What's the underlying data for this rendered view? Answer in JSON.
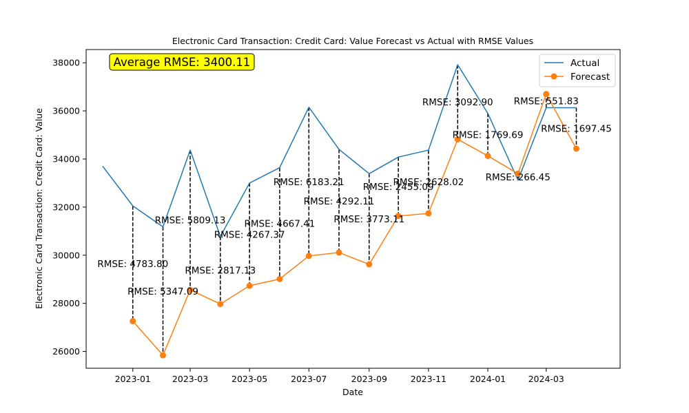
{
  "chart_data": {
    "type": "line",
    "title": "Electronic Card Transaction: Credit Card: Value Forecast vs Actual with RMSE Values",
    "xlabel": "Date",
    "ylabel": "Electronic Card Transaction: Credit Card: Value",
    "ylim": [
      25300,
      38550
    ],
    "xlim": [
      "2022-11-14",
      "2024-05-16"
    ],
    "x_ticks": [
      {
        "date": "2023-01-01",
        "label": "2023-01"
      },
      {
        "date": "2023-03-01",
        "label": "2023-03"
      },
      {
        "date": "2023-05-01",
        "label": "2023-05"
      },
      {
        "date": "2023-07-01",
        "label": "2023-07"
      },
      {
        "date": "2023-09-01",
        "label": "2023-09"
      },
      {
        "date": "2023-11-01",
        "label": "2023-11"
      },
      {
        "date": "2024-01-01",
        "label": "2024-01"
      },
      {
        "date": "2024-03-01",
        "label": "2024-03"
      }
    ],
    "y_ticks": [
      26000,
      28000,
      30000,
      32000,
      34000,
      36000,
      38000
    ],
    "grid": false,
    "legend_position": "top-right",
    "annotation": "Average RMSE: 3400.11",
    "series": [
      {
        "name": "Actual",
        "color": "#1f77b4",
        "marker": "none",
        "points": [
          {
            "date": "2022-12-01",
            "value": 33700
          },
          {
            "date": "2023-01-01",
            "value": 32050
          },
          {
            "date": "2023-02-01",
            "value": 31180
          },
          {
            "date": "2023-03-01",
            "value": 34370
          },
          {
            "date": "2023-04-01",
            "value": 30780
          },
          {
            "date": "2023-05-01",
            "value": 33000
          },
          {
            "date": "2023-06-01",
            "value": 33640
          },
          {
            "date": "2023-07-01",
            "value": 36150
          },
          {
            "date": "2023-08-01",
            "value": 34400
          },
          {
            "date": "2023-09-01",
            "value": 33390
          },
          {
            "date": "2023-10-01",
            "value": 34080
          },
          {
            "date": "2023-11-01",
            "value": 34370
          },
          {
            "date": "2023-12-01",
            "value": 37920
          },
          {
            "date": "2024-01-01",
            "value": 35900
          },
          {
            "date": "2024-02-01",
            "value": 33120
          },
          {
            "date": "2024-03-01",
            "value": 36130
          },
          {
            "date": "2024-04-01",
            "value": 36130
          }
        ]
      },
      {
        "name": "Forecast",
        "color": "#ff7f0e",
        "marker": "circle",
        "points": [
          {
            "date": "2023-01-01",
            "value": 27260
          },
          {
            "date": "2023-02-01",
            "value": 25840
          },
          {
            "date": "2023-03-01",
            "value": 28560
          },
          {
            "date": "2023-04-01",
            "value": 27970
          },
          {
            "date": "2023-05-01",
            "value": 28730
          },
          {
            "date": "2023-06-01",
            "value": 29010
          },
          {
            "date": "2023-07-01",
            "value": 29970
          },
          {
            "date": "2023-08-01",
            "value": 30110
          },
          {
            "date": "2023-09-01",
            "value": 29620
          },
          {
            "date": "2023-10-01",
            "value": 31630
          },
          {
            "date": "2023-11-01",
            "value": 31740
          },
          {
            "date": "2023-12-01",
            "value": 34820
          },
          {
            "date": "2024-01-01",
            "value": 34130
          },
          {
            "date": "2024-02-01",
            "value": 33390
          },
          {
            "date": "2024-03-01",
            "value": 36700
          },
          {
            "date": "2024-04-01",
            "value": 34430
          }
        ]
      }
    ],
    "rmse_annotations": [
      {
        "date": "2023-01-01",
        "text": "RMSE: 4783.80",
        "value": 29655
      },
      {
        "date": "2023-02-01",
        "text": "RMSE: 5347.09",
        "value": 28510
      },
      {
        "date": "2023-03-01",
        "text": "RMSE: 5809.13",
        "value": 31465
      },
      {
        "date": "2023-04-01",
        "text": "RMSE: 2817.13",
        "value": 29375
      },
      {
        "date": "2023-05-01",
        "text": "RMSE: 4267.37",
        "value": 30865
      },
      {
        "date": "2023-06-01",
        "text": "RMSE: 4667.41",
        "value": 31325
      },
      {
        "date": "2023-07-01",
        "text": "RMSE: 6183.21",
        "value": 33060
      },
      {
        "date": "2023-08-01",
        "text": "RMSE: 4292.11",
        "value": 32255
      },
      {
        "date": "2023-09-01",
        "text": "RMSE: 3773.11",
        "value": 31505
      },
      {
        "date": "2023-10-01",
        "text": "RMSE: 2455.09",
        "value": 32855
      },
      {
        "date": "2023-11-01",
        "text": "RMSE: 2628.02",
        "value": 33055
      },
      {
        "date": "2023-12-01",
        "text": "RMSE: 3092.90",
        "value": 36370
      },
      {
        "date": "2024-01-01",
        "text": "RMSE: 1769.69",
        "value": 35015
      },
      {
        "date": "2024-02-01",
        "text": "RMSE: 266.45",
        "value": 33255
      },
      {
        "date": "2024-03-01",
        "text": "RMSE: 551.83",
        "value": 36415
      },
      {
        "date": "2024-04-01",
        "text": "RMSE: 1697.45",
        "value": 35280
      }
    ]
  }
}
